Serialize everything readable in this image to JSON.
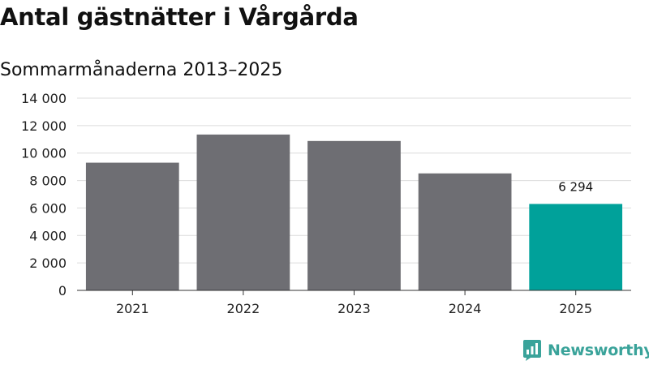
{
  "chart_data": {
    "type": "bar",
    "title": "Antal gästnätter i Vårgårda",
    "subtitle": "Sommarmånaderna 2013–2025",
    "xlabel": "",
    "ylabel": "",
    "categories": [
      "2021",
      "2022",
      "2023",
      "2024",
      "2025"
    ],
    "values": [
      9300,
      11350,
      10880,
      8520,
      6294
    ],
    "data_labels": [
      "",
      "",
      "",
      "",
      "6 294"
    ],
    "ylim": [
      0,
      14000
    ],
    "yticks": [
      0,
      2000,
      4000,
      6000,
      8000,
      10000,
      12000,
      14000
    ],
    "ytick_labels": [
      "0",
      "2 000",
      "4 000",
      "6 000",
      "8 000",
      "10 000",
      "12 000",
      "14 000"
    ],
    "grid": true,
    "legend": "none",
    "colors": {
      "default": "#6e6e73",
      "highlight": "#00a19a"
    },
    "highlight_index": 4
  },
  "brand": {
    "name": "Newsworthy",
    "icon": "newsworthy-logo-icon",
    "color": "#3aa39a"
  }
}
